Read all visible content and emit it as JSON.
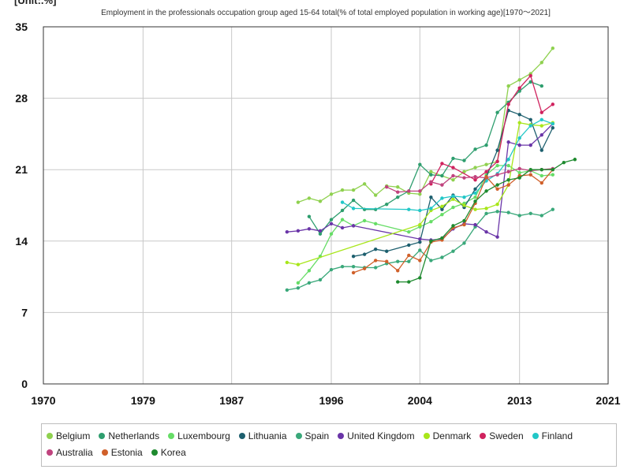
{
  "unit_label": "[Unit:.%]",
  "chart_data": {
    "type": "line",
    "title": "Employment in the professionals occupation group aged 15-64 total(% of total employed population in working age)[1970～2021]",
    "xlabel": "",
    "ylabel": "",
    "xlim": [
      1970,
      2021
    ],
    "ylim": [
      0,
      35
    ],
    "x_ticks": [
      1970,
      1979,
      1987,
      1996,
      2004,
      2013,
      2021
    ],
    "y_ticks": [
      0,
      7,
      14,
      21,
      28,
      35
    ],
    "grid": true,
    "legend_position": "bottom",
    "series": [
      {
        "name": "Belgium",
        "color": "#8fd14f",
        "points": [
          [
            1993,
            17.8
          ],
          [
            1994,
            18.2
          ],
          [
            1995,
            17.9
          ],
          [
            1996,
            18.6
          ],
          [
            1997,
            19.0
          ],
          [
            1998,
            19.0
          ],
          [
            1999,
            19.6
          ],
          [
            2000,
            18.5
          ],
          [
            2001,
            19.4
          ],
          [
            2002,
            19.3
          ],
          [
            2003,
            18.7
          ],
          [
            2004,
            18.6
          ],
          [
            2005,
            20.8
          ],
          [
            2006,
            20.4
          ],
          [
            2007,
            20.0
          ],
          [
            2008,
            20.8
          ],
          [
            2009,
            21.2
          ],
          [
            2010,
            21.5
          ],
          [
            2011,
            21.8
          ],
          [
            2012,
            29.2
          ],
          [
            2013,
            29.8
          ],
          [
            2014,
            30.4
          ],
          [
            2015,
            31.5
          ],
          [
            2016,
            32.9
          ]
        ]
      },
      {
        "name": "Netherlands",
        "color": "#2e9e6e",
        "points": [
          [
            1994,
            16.4
          ],
          [
            1995,
            14.7
          ],
          [
            1996,
            16.1
          ],
          [
            1997,
            17.0
          ],
          [
            1998,
            18.0
          ],
          [
            1999,
            17.1
          ],
          [
            2000,
            17.1
          ],
          [
            2001,
            17.6
          ],
          [
            2002,
            18.3
          ],
          [
            2003,
            18.9
          ],
          [
            2004,
            21.5
          ],
          [
            2005,
            20.5
          ],
          [
            2006,
            20.4
          ],
          [
            2007,
            22.1
          ],
          [
            2008,
            21.9
          ],
          [
            2009,
            23.0
          ],
          [
            2010,
            23.4
          ],
          [
            2011,
            26.6
          ],
          [
            2012,
            27.6
          ],
          [
            2013,
            28.7
          ],
          [
            2014,
            29.6
          ],
          [
            2015,
            29.2
          ]
        ]
      },
      {
        "name": "Luxembourg",
        "color": "#66dd66",
        "points": [
          [
            1993,
            9.9
          ],
          [
            1994,
            11.1
          ],
          [
            1995,
            12.5
          ],
          [
            1996,
            14.7
          ],
          [
            1997,
            16.1
          ],
          [
            1998,
            15.5
          ],
          [
            1999,
            16.0
          ],
          [
            2000,
            15.7
          ],
          [
            2003,
            14.9
          ],
          [
            2004,
            15.4
          ],
          [
            2005,
            15.9
          ],
          [
            2006,
            16.6
          ],
          [
            2007,
            17.3
          ],
          [
            2008,
            17.7
          ],
          [
            2009,
            18.3
          ],
          [
            2010,
            20.5
          ],
          [
            2011,
            21.4
          ],
          [
            2012,
            21.4
          ],
          [
            2013,
            20.7
          ],
          [
            2014,
            20.9
          ],
          [
            2015,
            20.4
          ],
          [
            2016,
            20.5
          ]
        ]
      },
      {
        "name": "Lithuania",
        "color": "#1d5f6e",
        "points": [
          [
            1998,
            12.5
          ],
          [
            1999,
            12.7
          ],
          [
            2000,
            13.2
          ],
          [
            2001,
            13.0
          ],
          [
            2003,
            13.6
          ],
          [
            2004,
            13.9
          ],
          [
            2005,
            18.3
          ],
          [
            2006,
            17.1
          ],
          [
            2007,
            18.5
          ],
          [
            2008,
            17.3
          ],
          [
            2009,
            19.1
          ],
          [
            2010,
            20.3
          ],
          [
            2011,
            22.9
          ],
          [
            2012,
            26.8
          ],
          [
            2013,
            26.4
          ],
          [
            2014,
            25.9
          ],
          [
            2015,
            22.9
          ],
          [
            2016,
            25.1
          ]
        ]
      },
      {
        "name": "Spain",
        "color": "#3aa87a",
        "points": [
          [
            1992,
            9.2
          ],
          [
            1993,
            9.4
          ],
          [
            1994,
            9.9
          ],
          [
            1995,
            10.2
          ],
          [
            1996,
            11.2
          ],
          [
            1997,
            11.5
          ],
          [
            1998,
            11.5
          ],
          [
            1999,
            11.4
          ],
          [
            2000,
            11.4
          ],
          [
            2001,
            11.8
          ],
          [
            2002,
            12.0
          ],
          [
            2003,
            12.0
          ],
          [
            2004,
            13.1
          ],
          [
            2005,
            12.1
          ],
          [
            2006,
            12.4
          ],
          [
            2007,
            13.0
          ],
          [
            2008,
            13.8
          ],
          [
            2009,
            15.4
          ],
          [
            2010,
            16.7
          ],
          [
            2011,
            16.9
          ],
          [
            2012,
            16.8
          ],
          [
            2013,
            16.5
          ],
          [
            2014,
            16.7
          ],
          [
            2015,
            16.5
          ],
          [
            2016,
            17.1
          ]
        ]
      },
      {
        "name": "United Kingdom",
        "color": "#6a35a8",
        "points": [
          [
            1992,
            14.9
          ],
          [
            1993,
            15.0
          ],
          [
            1994,
            15.2
          ],
          [
            1995,
            15.0
          ],
          [
            1996,
            15.7
          ],
          [
            1997,
            15.3
          ],
          [
            1998,
            15.5
          ],
          [
            2004,
            14.2
          ],
          [
            2005,
            14.1
          ],
          [
            2006,
            14.2
          ],
          [
            2007,
            15.2
          ],
          [
            2008,
            15.7
          ],
          [
            2009,
            15.6
          ],
          [
            2010,
            14.9
          ],
          [
            2011,
            14.4
          ],
          [
            2012,
            23.7
          ],
          [
            2013,
            23.4
          ],
          [
            2014,
            23.4
          ],
          [
            2015,
            24.4
          ],
          [
            2016,
            25.5
          ]
        ]
      },
      {
        "name": "Denmark",
        "color": "#a8e61a",
        "points": [
          [
            1992,
            11.9
          ],
          [
            1993,
            11.7
          ],
          [
            2004,
            15.6
          ],
          [
            2005,
            17.0
          ],
          [
            2006,
            17.4
          ],
          [
            2007,
            18.1
          ],
          [
            2008,
            17.5
          ],
          [
            2009,
            17.1
          ],
          [
            2010,
            17.2
          ],
          [
            2011,
            17.6
          ],
          [
            2012,
            19.5
          ],
          [
            2013,
            25.6
          ],
          [
            2014,
            25.4
          ],
          [
            2015,
            25.3
          ],
          [
            2016,
            25.6
          ]
        ]
      },
      {
        "name": "Sweden",
        "color": "#d0225e",
        "points": [
          [
            2005,
            19.6
          ],
          [
            2006,
            21.6
          ],
          [
            2007,
            21.2
          ],
          [
            2009,
            20.0
          ],
          [
            2010,
            20.8
          ],
          [
            2011,
            21.8
          ],
          [
            2012,
            27.4
          ],
          [
            2013,
            29.0
          ],
          [
            2014,
            30.2
          ],
          [
            2015,
            26.6
          ],
          [
            2016,
            27.4
          ]
        ]
      },
      {
        "name": "Finland",
        "color": "#22c7c7",
        "points": [
          [
            1997,
            17.8
          ],
          [
            1998,
            17.2
          ],
          [
            2003,
            17.1
          ],
          [
            2004,
            17.0
          ],
          [
            2005,
            17.2
          ],
          [
            2006,
            18.2
          ],
          [
            2007,
            18.4
          ],
          [
            2008,
            18.3
          ],
          [
            2009,
            18.7
          ],
          [
            2010,
            19.9
          ],
          [
            2011,
            20.6
          ],
          [
            2012,
            22.0
          ],
          [
            2013,
            24.1
          ],
          [
            2014,
            25.3
          ],
          [
            2015,
            25.9
          ],
          [
            2016,
            25.5
          ]
        ]
      },
      {
        "name": "Australia",
        "color": "#c0437e",
        "points": [
          [
            2001,
            19.3
          ],
          [
            2002,
            18.8
          ],
          [
            2003,
            18.9
          ],
          [
            2004,
            18.9
          ],
          [
            2005,
            19.8
          ],
          [
            2006,
            19.5
          ],
          [
            2007,
            20.4
          ],
          [
            2008,
            20.2
          ],
          [
            2009,
            20.3
          ],
          [
            2010,
            20.2
          ],
          [
            2011,
            20.5
          ],
          [
            2012,
            20.8
          ],
          [
            2013,
            21.1
          ],
          [
            2014,
            20.9
          ],
          [
            2015,
            21.0
          ],
          [
            2016,
            21.1
          ]
        ]
      },
      {
        "name": "Estonia",
        "color": "#d0602a",
        "points": [
          [
            1998,
            10.9
          ],
          [
            1999,
            11.3
          ],
          [
            2000,
            12.1
          ],
          [
            2001,
            12.0
          ],
          [
            2002,
            11.1
          ],
          [
            2003,
            12.6
          ],
          [
            2004,
            12.1
          ],
          [
            2005,
            13.9
          ],
          [
            2006,
            14.1
          ],
          [
            2007,
            15.3
          ],
          [
            2008,
            15.6
          ],
          [
            2009,
            17.7
          ],
          [
            2010,
            20.3
          ],
          [
            2011,
            19.1
          ],
          [
            2012,
            19.5
          ],
          [
            2013,
            20.4
          ],
          [
            2014,
            20.5
          ],
          [
            2015,
            19.7
          ],
          [
            2016,
            21.0
          ]
        ]
      },
      {
        "name": "Korea",
        "color": "#1e8a2e",
        "points": [
          [
            2002,
            10.0
          ],
          [
            2003,
            10.0
          ],
          [
            2004,
            10.4
          ],
          [
            2005,
            14.0
          ],
          [
            2006,
            14.3
          ],
          [
            2007,
            15.5
          ],
          [
            2008,
            16.0
          ],
          [
            2009,
            17.9
          ],
          [
            2010,
            18.9
          ],
          [
            2011,
            19.5
          ],
          [
            2012,
            20.0
          ],
          [
            2013,
            20.2
          ],
          [
            2014,
            21.0
          ],
          [
            2015,
            21.0
          ],
          [
            2016,
            21.0
          ],
          [
            2017,
            21.7
          ],
          [
            2018,
            22.0
          ]
        ]
      }
    ]
  }
}
